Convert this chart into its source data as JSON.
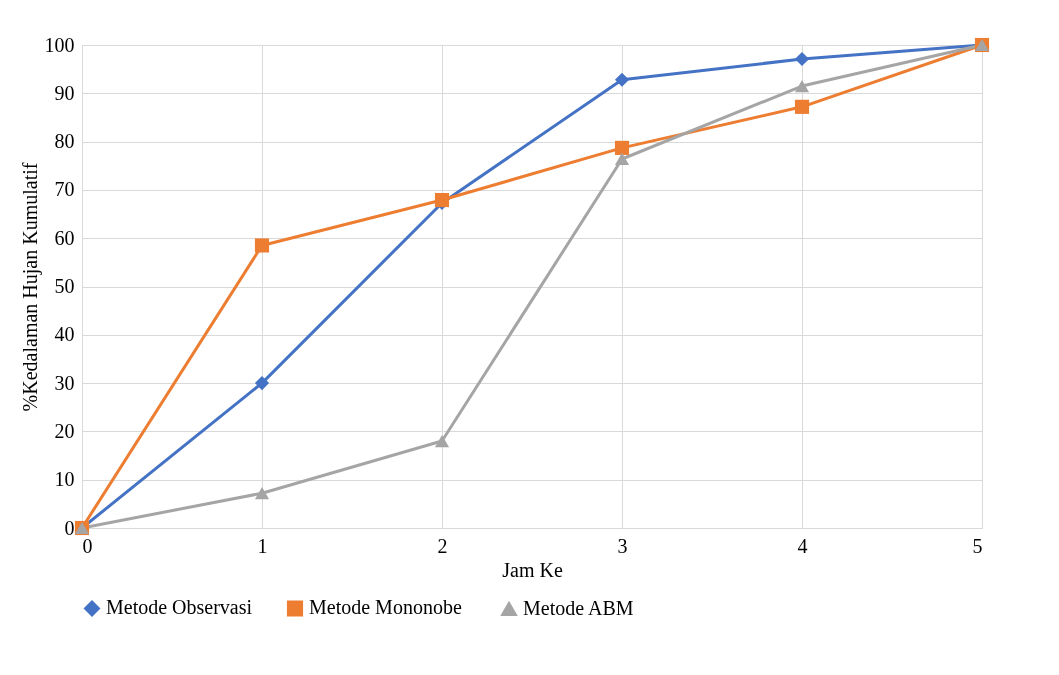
{
  "chart_data": {
    "type": "line",
    "xlabel": "Jam Ke",
    "ylabel": "%Kedalaman Hujan Kumulatif",
    "x": [
      0,
      1,
      2,
      3,
      4,
      5
    ],
    "xlim": [
      0,
      5
    ],
    "xticks": [
      0,
      1,
      2,
      3,
      4,
      5
    ],
    "ylim": [
      0,
      100
    ],
    "yticks": [
      0,
      10,
      20,
      30,
      40,
      50,
      60,
      70,
      80,
      90,
      100
    ],
    "grid": true,
    "legend": "bottom",
    "line_style": "solid",
    "series": [
      {
        "name": "Metode Observasi",
        "color": "#4472c4",
        "marker": "diamond",
        "values": [
          0,
          30,
          67.3,
          92.8,
          97.1,
          100
        ]
      },
      {
        "name": "Metode  Mononobe",
        "color": "#ed7d31",
        "marker": "square",
        "values": [
          0,
          58.5,
          67.9,
          78.7,
          87.2,
          100
        ]
      },
      {
        "name": "Metode ABM",
        "color": "#a5a5a5",
        "marker": "triangle",
        "values": [
          0,
          7.2,
          18,
          76.4,
          91.5,
          100
        ]
      }
    ]
  }
}
